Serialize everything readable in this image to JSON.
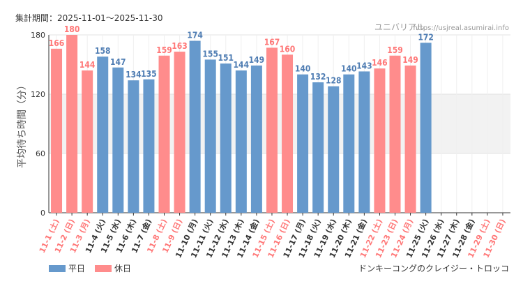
{
  "header": {
    "period_label": "集計期間：2025-11-01〜2025-11-30",
    "site_name": "ユニバリアル",
    "site_url": "https://usjreal.asumirai.info"
  },
  "attribution": "ドンキーコングのクレイジー・トロッコ",
  "colors": {
    "weekday": "#6699cc",
    "holiday": "#ff8c8c",
    "holiday_text": "#ff7777",
    "weekday_text": "#4f7db3",
    "band": "#f2f2f2",
    "axis": "#333333"
  },
  "chart_data": {
    "type": "bar",
    "title": "",
    "xlabel": "",
    "ylabel": "平均待ち時間（分）",
    "ylim": [
      0,
      180
    ],
    "yticks": [
      0,
      60,
      120,
      180
    ],
    "shaded_band": [
      60,
      120
    ],
    "legend": [
      {
        "name": "平日",
        "key": "weekday"
      },
      {
        "name": "休日",
        "key": "holiday"
      }
    ],
    "categories": [
      "11-1 (土)",
      "11-2 (日)",
      "11-3 (月)",
      "11-4 (火)",
      "11-5 (水)",
      "11-6 (木)",
      "11-7 (金)",
      "11-8 (土)",
      "11-9 (日)",
      "11-10 (月)",
      "11-11 (火)",
      "11-12 (水)",
      "11-13 (木)",
      "11-14 (金)",
      "11-15 (土)",
      "11-16 (日)",
      "11-17 (月)",
      "11-18 (火)",
      "11-19 (水)",
      "11-20 (木)",
      "11-21 (金)",
      "11-22 (土)",
      "11-23 (日)",
      "11-24 (月)",
      "11-25 (火)",
      "11-26 (水)",
      "11-27 (木)",
      "11-28 (金)",
      "11-29 (土)",
      "11-30 (日)"
    ],
    "values": [
      166,
      180,
      144,
      158,
      147,
      134,
      135,
      159,
      163,
      174,
      155,
      151,
      144,
      149,
      167,
      160,
      140,
      132,
      128,
      140,
      143,
      146,
      159,
      149,
      172,
      null,
      null,
      null,
      null,
      null
    ],
    "day_type": [
      "holiday",
      "holiday",
      "holiday",
      "weekday",
      "weekday",
      "weekday",
      "weekday",
      "holiday",
      "holiday",
      "weekday",
      "weekday",
      "weekday",
      "weekday",
      "weekday",
      "holiday",
      "holiday",
      "weekday",
      "weekday",
      "weekday",
      "weekday",
      "weekday",
      "holiday",
      "holiday",
      "holiday",
      "weekday",
      "weekday",
      "weekday",
      "weekday",
      "holiday",
      "holiday"
    ]
  }
}
